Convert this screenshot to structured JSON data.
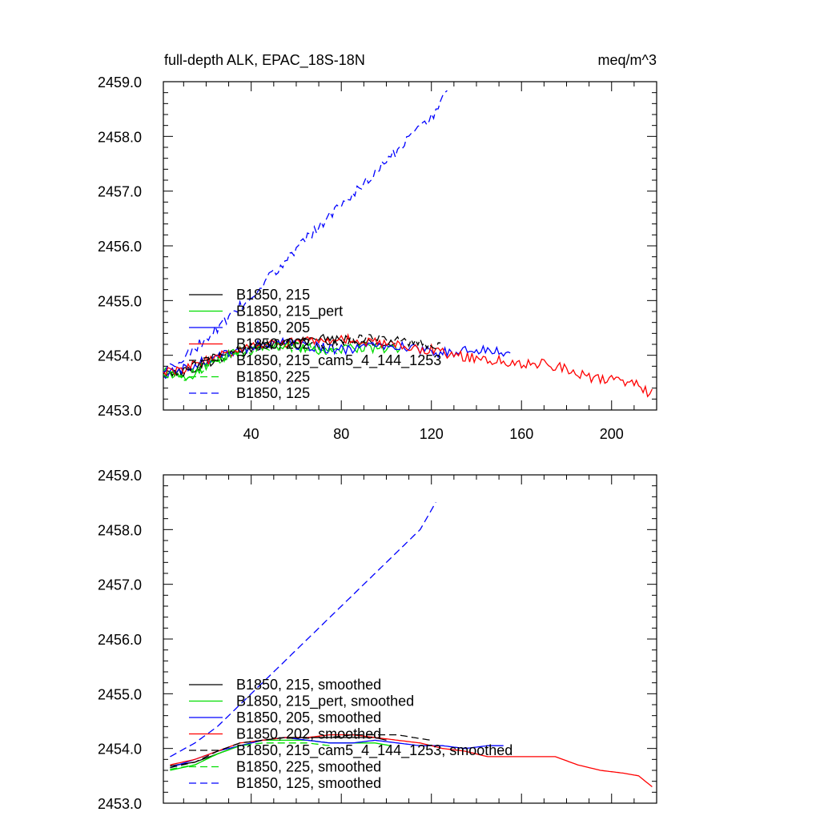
{
  "chart_data": [
    {
      "type": "line",
      "title": "full-depth ALK, EPAC_18S-18N",
      "units_label": "meq/m^3",
      "xlim": [
        1,
        220
      ],
      "ylim": [
        2453.0,
        2459.0
      ],
      "x_ticks": [
        40,
        80,
        120,
        160,
        200
      ],
      "y_ticks": [
        2453.0,
        2454.0,
        2455.0,
        2456.0,
        2457.0,
        2458.0,
        2459.0
      ],
      "y_tick_labels": [
        "2453.0",
        "2454.0",
        "2455.0",
        "2456.0",
        "2457.0",
        "2458.0",
        "2459.0"
      ],
      "grid": false,
      "legend_position": "lower-left",
      "series": [
        {
          "name": "B1850, 215",
          "color": "#000000",
          "dash": "solid",
          "points": [
            [
              1,
              2453.65
            ],
            [
              10,
              2453.7
            ],
            [
              20,
              2453.85
            ],
            [
              30,
              2454.0
            ],
            [
              40,
              2454.1
            ],
            [
              50,
              2454.2
            ],
            [
              60,
              2454.25
            ],
            [
              70,
              2454.3
            ],
            [
              80,
              2454.3
            ],
            [
              90,
              2454.25
            ],
            [
              100,
              2454.2
            ],
            [
              104,
              2454.2
            ]
          ]
        },
        {
          "name": "B1850, 215_pert",
          "color": "#00dd00",
          "dash": "solid",
          "points": [
            [
              1,
              2453.7
            ],
            [
              10,
              2453.55
            ],
            [
              20,
              2453.8
            ],
            [
              30,
              2454.0
            ],
            [
              40,
              2454.15
            ],
            [
              50,
              2454.2
            ],
            [
              60,
              2454.15
            ],
            [
              70,
              2454.1
            ],
            [
              80,
              2454.1
            ],
            [
              90,
              2454.15
            ],
            [
              100,
              2454.1
            ],
            [
              106,
              2454.1
            ]
          ]
        },
        {
          "name": "B1850, 205",
          "color": "#0000ff",
          "dash": "solid",
          "points": [
            [
              1,
              2453.65
            ],
            [
              10,
              2453.75
            ],
            [
              20,
              2453.9
            ],
            [
              30,
              2454.05
            ],
            [
              40,
              2454.15
            ],
            [
              50,
              2454.25
            ],
            [
              60,
              2454.2
            ],
            [
              70,
              2454.15
            ],
            [
              80,
              2454.1
            ],
            [
              90,
              2454.15
            ],
            [
              100,
              2454.2
            ],
            [
              110,
              2454.15
            ],
            [
              120,
              2454.05
            ],
            [
              130,
              2454.05
            ],
            [
              140,
              2454.1
            ],
            [
              150,
              2454.05
            ],
            [
              155,
              2454.05
            ]
          ]
        },
        {
          "name": "B1850, 202",
          "color": "#ff0000",
          "dash": "solid",
          "points": [
            [
              1,
              2453.7
            ],
            [
              10,
              2453.75
            ],
            [
              20,
              2453.9
            ],
            [
              30,
              2454.05
            ],
            [
              40,
              2454.15
            ],
            [
              50,
              2454.2
            ],
            [
              60,
              2454.25
            ],
            [
              70,
              2454.25
            ],
            [
              80,
              2454.3
            ],
            [
              90,
              2454.25
            ],
            [
              100,
              2454.2
            ],
            [
              110,
              2454.15
            ],
            [
              120,
              2454.1
            ],
            [
              130,
              2454.0
            ],
            [
              140,
              2453.95
            ],
            [
              150,
              2453.9
            ],
            [
              160,
              2453.85
            ],
            [
              170,
              2453.85
            ],
            [
              180,
              2453.75
            ],
            [
              190,
              2453.6
            ],
            [
              200,
              2453.55
            ],
            [
              210,
              2453.5
            ],
            [
              215,
              2453.35
            ],
            [
              218,
              2453.3
            ]
          ]
        },
        {
          "name": "B1850, 215_cam5_4_144_1253",
          "color": "#000000",
          "dash": "dashed",
          "points": [
            [
              1,
              2453.65
            ],
            [
              10,
              2453.7
            ],
            [
              20,
              2453.9
            ],
            [
              30,
              2454.05
            ],
            [
              40,
              2454.15
            ],
            [
              50,
              2454.2
            ],
            [
              60,
              2454.25
            ],
            [
              70,
              2454.2
            ],
            [
              80,
              2454.25
            ],
            [
              90,
              2454.3
            ],
            [
              100,
              2454.3
            ],
            [
              110,
              2454.25
            ],
            [
              118,
              2454.2
            ],
            [
              124,
              2454.2
            ]
          ]
        },
        {
          "name": "B1850, 225",
          "color": "#00dd00",
          "dash": "dashed",
          "points": [
            [
              1,
              2453.65
            ],
            [
              10,
              2453.6
            ],
            [
              20,
              2453.8
            ],
            [
              30,
              2454.0
            ],
            [
              40,
              2454.1
            ],
            [
              50,
              2454.15
            ],
            [
              60,
              2454.15
            ],
            [
              70,
              2454.1
            ],
            [
              78,
              2454.1
            ]
          ]
        },
        {
          "name": "B1850, 125",
          "color": "#0000ff",
          "dash": "dashed",
          "points": [
            [
              1,
              2453.7
            ],
            [
              10,
              2453.95
            ],
            [
              20,
              2454.3
            ],
            [
              30,
              2454.7
            ],
            [
              40,
              2455.1
            ],
            [
              50,
              2455.5
            ],
            [
              60,
              2455.95
            ],
            [
              70,
              2456.35
            ],
            [
              80,
              2456.75
            ],
            [
              90,
              2457.15
            ],
            [
              100,
              2457.55
            ],
            [
              110,
              2457.95
            ],
            [
              120,
              2458.35
            ],
            [
              127,
              2458.8
            ]
          ]
        }
      ]
    },
    {
      "type": "line",
      "xlim": [
        1,
        220
      ],
      "ylim": [
        2453.0,
        2459.0
      ],
      "x_ticks": [
        40,
        80,
        120,
        160,
        200
      ],
      "y_ticks": [
        2453.0,
        2454.0,
        2455.0,
        2456.0,
        2457.0,
        2458.0,
        2459.0
      ],
      "y_tick_labels": [
        "2453.0",
        "2454.0",
        "2455.0",
        "2456.0",
        "2457.0",
        "2458.0",
        "2459.0"
      ],
      "grid": false,
      "legend_position": "lower-left",
      "series": [
        {
          "name": "B1850, 215, smoothed",
          "color": "#000000",
          "dash": "solid",
          "points": [
            [
              4,
              2453.68
            ],
            [
              15,
              2453.75
            ],
            [
              25,
              2453.9
            ],
            [
              35,
              2454.05
            ],
            [
              45,
              2454.15
            ],
            [
              55,
              2454.2
            ],
            [
              65,
              2454.2
            ],
            [
              75,
              2454.2
            ],
            [
              85,
              2454.2
            ],
            [
              95,
              2454.2
            ],
            [
              100,
              2454.15
            ]
          ]
        },
        {
          "name": "B1850, 215_pert, smoothed",
          "color": "#00dd00",
          "dash": "solid",
          "points": [
            [
              4,
              2453.6
            ],
            [
              15,
              2453.7
            ],
            [
              25,
              2453.9
            ],
            [
              35,
              2454.05
            ],
            [
              45,
              2454.15
            ],
            [
              55,
              2454.15
            ],
            [
              65,
              2454.15
            ],
            [
              75,
              2454.1
            ],
            [
              85,
              2454.1
            ],
            [
              95,
              2454.1
            ],
            [
              102,
              2454.05
            ]
          ]
        },
        {
          "name": "B1850, 205, smoothed",
          "color": "#0000ff",
          "dash": "solid",
          "points": [
            [
              4,
              2453.65
            ],
            [
              15,
              2453.8
            ],
            [
              25,
              2453.95
            ],
            [
              35,
              2454.05
            ],
            [
              45,
              2454.15
            ],
            [
              55,
              2454.2
            ],
            [
              65,
              2454.15
            ],
            [
              75,
              2454.1
            ],
            [
              85,
              2454.1
            ],
            [
              95,
              2454.15
            ],
            [
              105,
              2454.1
            ],
            [
              115,
              2454.05
            ],
            [
              125,
              2454.05
            ],
            [
              135,
              2454.0
            ],
            [
              145,
              2454.05
            ],
            [
              152,
              2454.05
            ]
          ]
        },
        {
          "name": "B1850, 202, smoothed",
          "color": "#ff0000",
          "dash": "solid",
          "points": [
            [
              4,
              2453.7
            ],
            [
              15,
              2453.8
            ],
            [
              25,
              2453.95
            ],
            [
              35,
              2454.1
            ],
            [
              45,
              2454.15
            ],
            [
              55,
              2454.2
            ],
            [
              65,
              2454.2
            ],
            [
              75,
              2454.25
            ],
            [
              85,
              2454.25
            ],
            [
              95,
              2454.2
            ],
            [
              105,
              2454.15
            ],
            [
              115,
              2454.1
            ],
            [
              125,
              2454.0
            ],
            [
              135,
              2453.95
            ],
            [
              145,
              2453.85
            ],
            [
              155,
              2453.85
            ],
            [
              165,
              2453.85
            ],
            [
              175,
              2453.85
            ],
            [
              185,
              2453.7
            ],
            [
              195,
              2453.6
            ],
            [
              205,
              2453.55
            ],
            [
              212,
              2453.5
            ],
            [
              218,
              2453.3
            ]
          ]
        },
        {
          "name": "B1850, 215_cam5_4_144_1253, smoothed",
          "color": "#000000",
          "dash": "dashed",
          "points": [
            [
              4,
              2453.65
            ],
            [
              15,
              2453.75
            ],
            [
              25,
              2453.95
            ],
            [
              35,
              2454.1
            ],
            [
              45,
              2454.15
            ],
            [
              55,
              2454.2
            ],
            [
              65,
              2454.2
            ],
            [
              75,
              2454.2
            ],
            [
              85,
              2454.25
            ],
            [
              95,
              2454.25
            ],
            [
              105,
              2454.25
            ],
            [
              112,
              2454.2
            ],
            [
              120,
              2454.15
            ]
          ]
        },
        {
          "name": "B1850, 225, smoothed",
          "color": "#00dd00",
          "dash": "dashed",
          "points": [
            [
              4,
              2453.62
            ],
            [
              15,
              2453.7
            ],
            [
              25,
              2453.9
            ],
            [
              35,
              2454.05
            ],
            [
              45,
              2454.1
            ],
            [
              55,
              2454.1
            ],
            [
              65,
              2454.1
            ],
            [
              75,
              2454.05
            ]
          ]
        },
        {
          "name": "B1850, 125, smoothed",
          "color": "#0000ff",
          "dash": "dashed",
          "points": [
            [
              4,
              2453.85
            ],
            [
              15,
              2454.1
            ],
            [
              25,
              2454.4
            ],
            [
              35,
              2454.8
            ],
            [
              45,
              2455.2
            ],
            [
              55,
              2455.6
            ],
            [
              65,
              2456.0
            ],
            [
              75,
              2456.4
            ],
            [
              85,
              2456.8
            ],
            [
              95,
              2457.2
            ],
            [
              105,
              2457.6
            ],
            [
              115,
              2458.0
            ],
            [
              122,
              2458.5
            ]
          ]
        }
      ]
    }
  ]
}
